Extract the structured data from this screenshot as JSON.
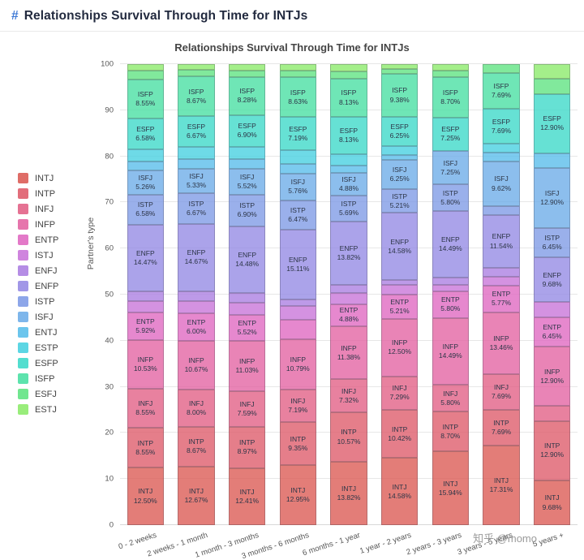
{
  "page": {
    "header": {
      "hash": "#",
      "title": "Relationships Survival Through Time for INTJs"
    },
    "watermark": "知乎 @momo"
  },
  "chart_data": {
    "type": "bar",
    "stacked": true,
    "percent": true,
    "title": "Relationships Survival Through Time for INTJs",
    "xlabel": "",
    "ylabel": "Partner's type",
    "ylim": [
      0,
      100
    ],
    "ytick_step": 10,
    "grid": true,
    "legend_position": "left",
    "label_min_value": 4.5,
    "categories": [
      "0 - 2 weeks",
      "2 weeks - 1 month",
      "1 month - 3 months",
      "3 months - 6 months",
      "6 months - 1 year",
      "1 year - 2 years",
      "2 years - 3 years",
      "3 years - 5 years",
      "5 years +"
    ],
    "series": [
      {
        "name": "INTJ",
        "color": "#db5952",
        "values": [
          12.5,
          12.67,
          12.41,
          12.95,
          13.82,
          14.58,
          15.94,
          17.31,
          9.68
        ]
      },
      {
        "name": "INTP",
        "color": "#de5a69",
        "values": [
          8.55,
          8.67,
          8.97,
          9.35,
          10.57,
          10.42,
          8.7,
          7.69,
          12.9
        ]
      },
      {
        "name": "INFJ",
        "color": "#e15e84",
        "values": [
          8.55,
          8.0,
          7.59,
          7.19,
          7.32,
          7.29,
          5.8,
          7.69,
          3.23
        ]
      },
      {
        "name": "INFP",
        "color": "#e362a1",
        "values": [
          10.53,
          10.67,
          11.03,
          10.79,
          11.38,
          12.5,
          14.49,
          13.46,
          12.9
        ]
      },
      {
        "name": "ENTP",
        "color": "#df67c0",
        "values": [
          5.92,
          6.0,
          5.52,
          4.32,
          4.88,
          5.21,
          5.8,
          5.77,
          6.45
        ]
      },
      {
        "name": "ISTJ",
        "color": "#c873d9",
        "values": [
          2.63,
          2.67,
          2.76,
          2.88,
          2.44,
          2.08,
          1.45,
          1.92,
          3.23
        ]
      },
      {
        "name": "ENFJ",
        "color": "#ab7de1",
        "values": [
          1.97,
          2.0,
          2.07,
          1.44,
          1.63,
          1.04,
          1.45,
          1.92,
          0.0
        ]
      },
      {
        "name": "ENFP",
        "color": "#9489e4",
        "values": [
          14.47,
          14.67,
          14.48,
          15.11,
          13.82,
          14.58,
          14.49,
          11.54,
          9.68
        ]
      },
      {
        "name": "ISTP",
        "color": "#7d9ae6",
        "values": [
          6.58,
          6.67,
          6.9,
          6.47,
          5.69,
          5.21,
          5.8,
          1.92,
          6.45
        ]
      },
      {
        "name": "ISFJ",
        "color": "#6cace8",
        "values": [
          5.26,
          5.33,
          5.52,
          5.76,
          4.88,
          6.25,
          7.25,
          9.62,
          12.9
        ]
      },
      {
        "name": "ENTJ",
        "color": "#57bdea",
        "values": [
          1.97,
          2.0,
          2.07,
          2.16,
          1.63,
          1.04,
          0.0,
          1.92,
          3.23
        ]
      },
      {
        "name": "ESTP",
        "color": "#45d0e0",
        "values": [
          2.63,
          2.67,
          2.76,
          2.88,
          2.44,
          2.08,
          0.0,
          1.92,
          0.0
        ]
      },
      {
        "name": "ESFP",
        "color": "#3bd9c8",
        "values": [
          6.58,
          6.67,
          6.9,
          7.19,
          8.13,
          6.25,
          7.25,
          7.69,
          12.9
        ]
      },
      {
        "name": "ISFP",
        "color": "#47dfa2",
        "values": [
          8.55,
          8.67,
          8.28,
          8.63,
          8.13,
          9.38,
          8.7,
          7.69,
          0.0
        ]
      },
      {
        "name": "ESFJ",
        "color": "#5de380",
        "values": [
          1.97,
          1.33,
          1.38,
          1.44,
          1.63,
          1.04,
          1.45,
          1.92,
          3.23
        ]
      },
      {
        "name": "ESTJ",
        "color": "#8bea69",
        "values": [
          1.32,
          1.33,
          1.38,
          1.44,
          1.63,
          1.04,
          1.45,
          0.0,
          3.23
        ]
      }
    ]
  }
}
